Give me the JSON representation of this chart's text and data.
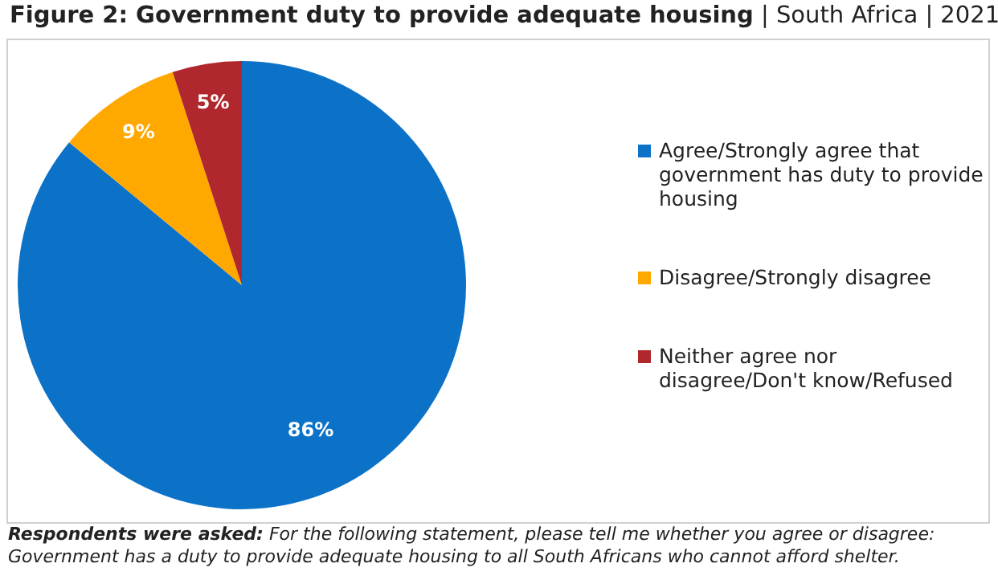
{
  "chart_data": {
    "type": "pie",
    "title": "Figure 2: Government duty to provide adequate housing",
    "subtitle": "| South Africa | 2021",
    "categories": [
      "Agree/Strongly agree that government has duty to provide housing",
      "Disagree/Strongly disagree",
      "Neither agree nor disagree/Don't know/Refused"
    ],
    "values": [
      86,
      9,
      5
    ],
    "colors": [
      "#0b72c8",
      "#ffa800",
      "#b0272d"
    ],
    "value_labels": [
      "86%",
      "9%",
      "5%"
    ],
    "legend": "right",
    "annotations": [
      "Respondents were asked:",
      "For the following statement, please tell me whether you agree or disagree: Government has a duty to provide adequate housing to all South Africans who cannot afford shelter."
    ]
  }
}
